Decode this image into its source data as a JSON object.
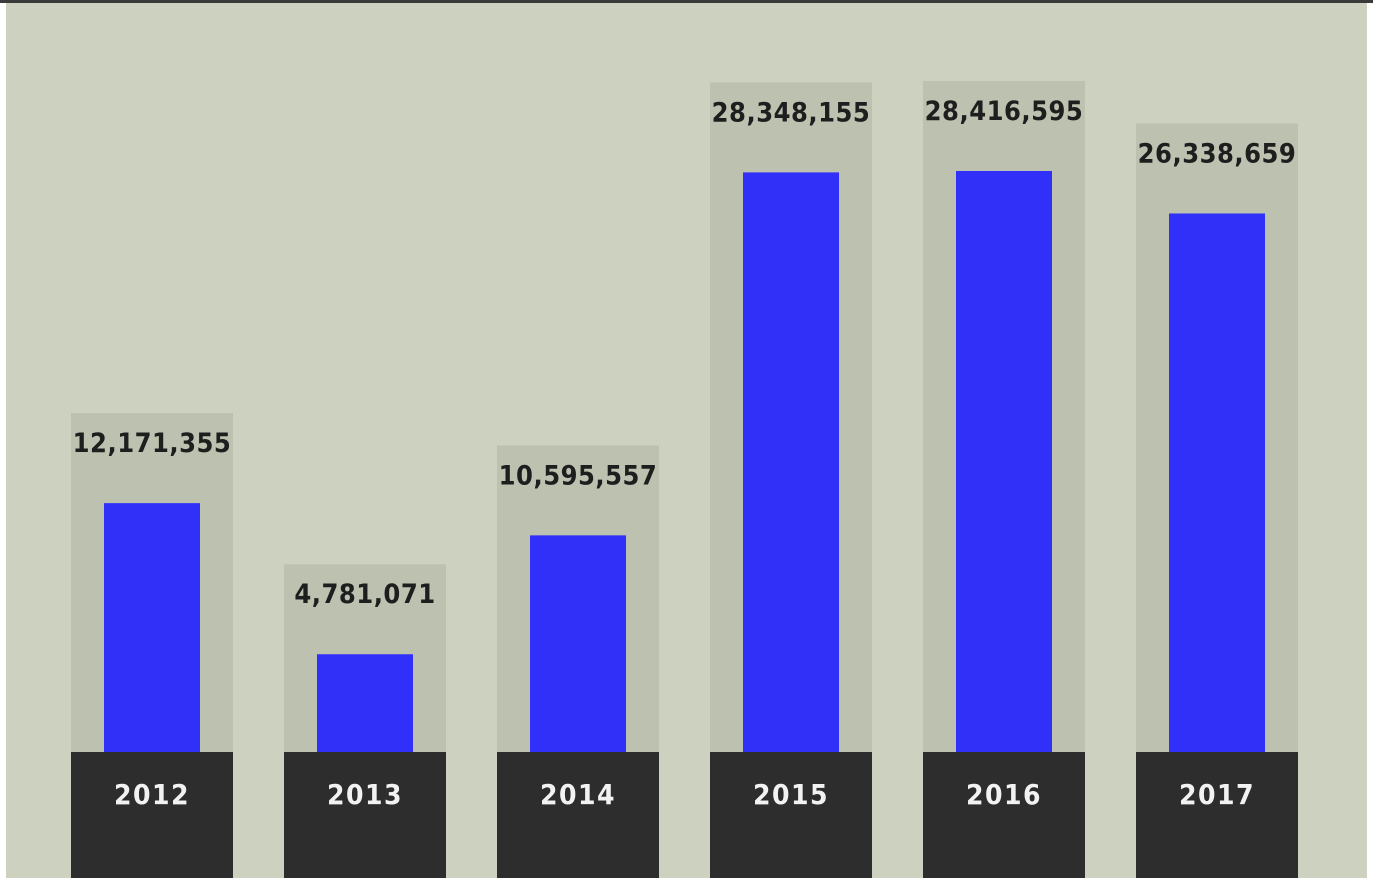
{
  "colors": {
    "background": "#cdd2c0",
    "bar_panel": "#bcc1b0",
    "bar": "#3030f8",
    "year_block": "#2e2d2d",
    "top_border": "#3a3a3a",
    "value_text": "#1e1e1e",
    "year_text": "#f2f2f2"
  },
  "chart_data": {
    "type": "bar",
    "title": "",
    "xlabel": "",
    "ylabel": "",
    "categories": [
      "2012",
      "2013",
      "2014",
      "2015",
      "2016",
      "2017"
    ],
    "values": [
      12171355,
      4781071,
      10595557,
      28348155,
      28416595,
      26338659
    ],
    "value_labels": [
      "12,171,355",
      "4,781,071",
      "10,595,557",
      "28,348,155",
      "28,416,595",
      "26,338,659"
    ],
    "ylim": [
      0,
      28416595
    ],
    "grid": false,
    "legend": "none"
  }
}
